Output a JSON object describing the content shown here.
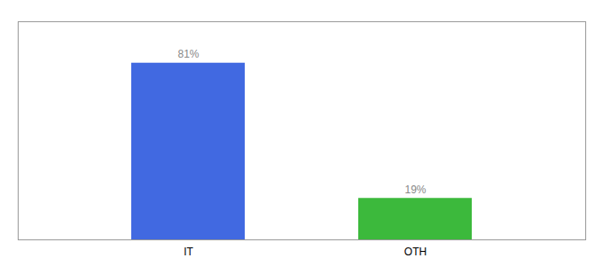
{
  "chart_data": {
    "type": "bar",
    "categories": [
      "IT",
      "OTH"
    ],
    "values": [
      81,
      19
    ],
    "value_labels": [
      "81%",
      "19%"
    ],
    "data_labels": true,
    "colors": [
      "#4169e1",
      "#3cb93c"
    ],
    "ylim": [
      0,
      100
    ],
    "tick_labels": "x"
  }
}
